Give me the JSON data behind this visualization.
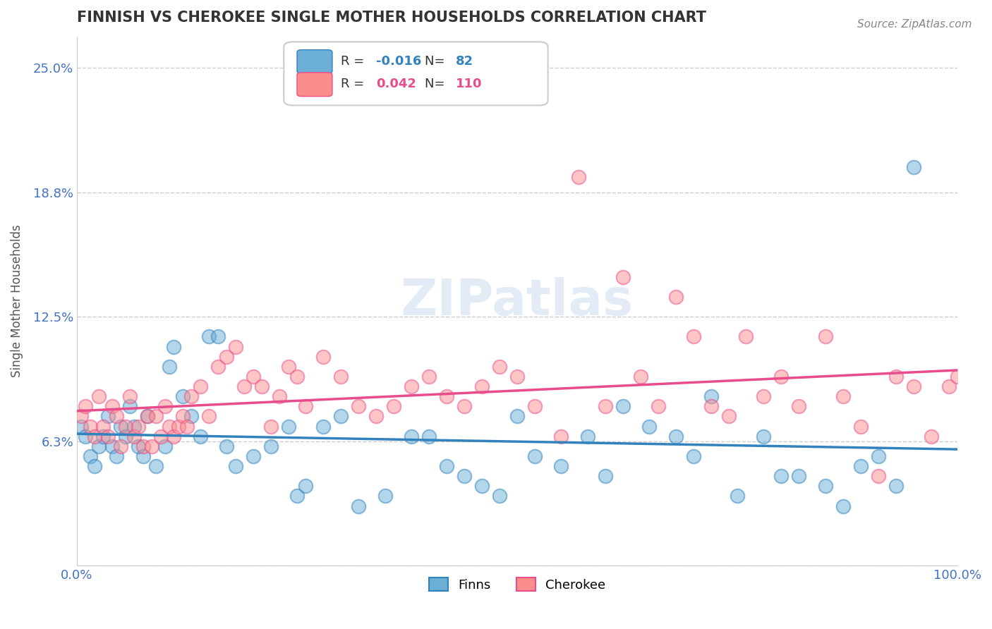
{
  "title": "FINNISH VS CHEROKEE SINGLE MOTHER HOUSEHOLDS CORRELATION CHART",
  "source": "Source: ZipAtlas.com",
  "xlabel": "",
  "ylabel": "Single Mother Households",
  "xlim": [
    0,
    100
  ],
  "ylim": [
    0,
    26.5625
  ],
  "yticks": [
    0,
    6.25,
    12.5,
    18.75,
    25.0
  ],
  "ytick_labels": [
    "",
    "6.3%",
    "12.5%",
    "18.8%",
    "25.0%"
  ],
  "xtick_labels": [
    "0.0%",
    "100.0%"
  ],
  "legend_r_finn": "-0.016",
  "legend_n_finn": "82",
  "legend_r_cherokee": "0.042",
  "legend_n_cherokee": "110",
  "finn_color": "#6baed6",
  "cherokee_color": "#fc8d8d",
  "finn_line_color": "#3182bd",
  "cherokee_line_color": "#e84c8b",
  "title_color": "#333333",
  "axis_label_color": "#555555",
  "tick_color": "#4472c4",
  "grid_color": "#cccccc",
  "watermark": "ZIPatlas",
  "finn_x": [
    0.5,
    1.0,
    1.5,
    2.0,
    2.5,
    3.0,
    3.5,
    4.0,
    4.5,
    5.0,
    5.5,
    6.0,
    6.5,
    7.0,
    7.5,
    8.0,
    9.0,
    10.0,
    10.5,
    11.0,
    12.0,
    13.0,
    14.0,
    15.0,
    16.0,
    17.0,
    18.0,
    20.0,
    22.0,
    24.0,
    25.0,
    26.0,
    28.0,
    30.0,
    32.0,
    35.0,
    38.0,
    40.0,
    42.0,
    44.0,
    46.0,
    48.0,
    50.0,
    52.0,
    55.0,
    58.0,
    60.0,
    62.0,
    65.0,
    68.0,
    70.0,
    72.0,
    75.0,
    78.0,
    80.0,
    82.0,
    85.0,
    87.0,
    89.0,
    91.0,
    93.0,
    95.0
  ],
  "finn_y": [
    7.0,
    6.5,
    5.5,
    5.0,
    6.0,
    6.5,
    7.5,
    6.0,
    5.5,
    7.0,
    6.5,
    8.0,
    7.0,
    6.0,
    5.5,
    7.5,
    5.0,
    6.0,
    10.0,
    11.0,
    8.5,
    7.5,
    6.5,
    11.5,
    11.5,
    6.0,
    5.0,
    5.5,
    6.0,
    7.0,
    3.5,
    4.0,
    7.0,
    7.5,
    3.0,
    3.5,
    6.5,
    6.5,
    5.0,
    4.5,
    4.0,
    3.5,
    7.5,
    5.5,
    5.0,
    6.5,
    4.5,
    8.0,
    7.0,
    6.5,
    5.5,
    8.5,
    3.5,
    6.5,
    4.5,
    4.5,
    4.0,
    3.0,
    5.0,
    5.5,
    4.0,
    20.0
  ],
  "cherokee_x": [
    0.5,
    1.0,
    1.5,
    2.0,
    2.5,
    3.0,
    3.5,
    4.0,
    4.5,
    5.0,
    5.5,
    6.0,
    6.5,
    7.0,
    7.5,
    8.0,
    8.5,
    9.0,
    9.5,
    10.0,
    10.5,
    11.0,
    11.5,
    12.0,
    12.5,
    13.0,
    14.0,
    15.0,
    16.0,
    17.0,
    18.0,
    19.0,
    20.0,
    21.0,
    22.0,
    23.0,
    24.0,
    25.0,
    26.0,
    28.0,
    30.0,
    32.0,
    34.0,
    36.0,
    38.0,
    40.0,
    42.0,
    44.0,
    46.0,
    48.0,
    50.0,
    52.0,
    55.0,
    57.0,
    60.0,
    62.0,
    64.0,
    66.0,
    68.0,
    70.0,
    72.0,
    74.0,
    76.0,
    78.0,
    80.0,
    82.0,
    85.0,
    87.0,
    89.0,
    91.0,
    93.0,
    95.0,
    97.0,
    99.0,
    100.0
  ],
  "cherokee_y": [
    7.5,
    8.0,
    7.0,
    6.5,
    8.5,
    7.0,
    6.5,
    8.0,
    7.5,
    6.0,
    7.0,
    8.5,
    6.5,
    7.0,
    6.0,
    7.5,
    6.0,
    7.5,
    6.5,
    8.0,
    7.0,
    6.5,
    7.0,
    7.5,
    7.0,
    8.5,
    9.0,
    7.5,
    10.0,
    10.5,
    11.0,
    9.0,
    9.5,
    9.0,
    7.0,
    8.5,
    10.0,
    9.5,
    8.0,
    10.5,
    9.5,
    8.0,
    7.5,
    8.0,
    9.0,
    9.5,
    8.5,
    8.0,
    9.0,
    10.0,
    9.5,
    8.0,
    6.5,
    19.5,
    8.0,
    14.5,
    9.5,
    8.0,
    13.5,
    11.5,
    8.0,
    7.5,
    11.5,
    8.5,
    9.5,
    8.0,
    11.5,
    8.5,
    7.0,
    4.5,
    9.5,
    9.0,
    6.5,
    9.0,
    9.5
  ]
}
